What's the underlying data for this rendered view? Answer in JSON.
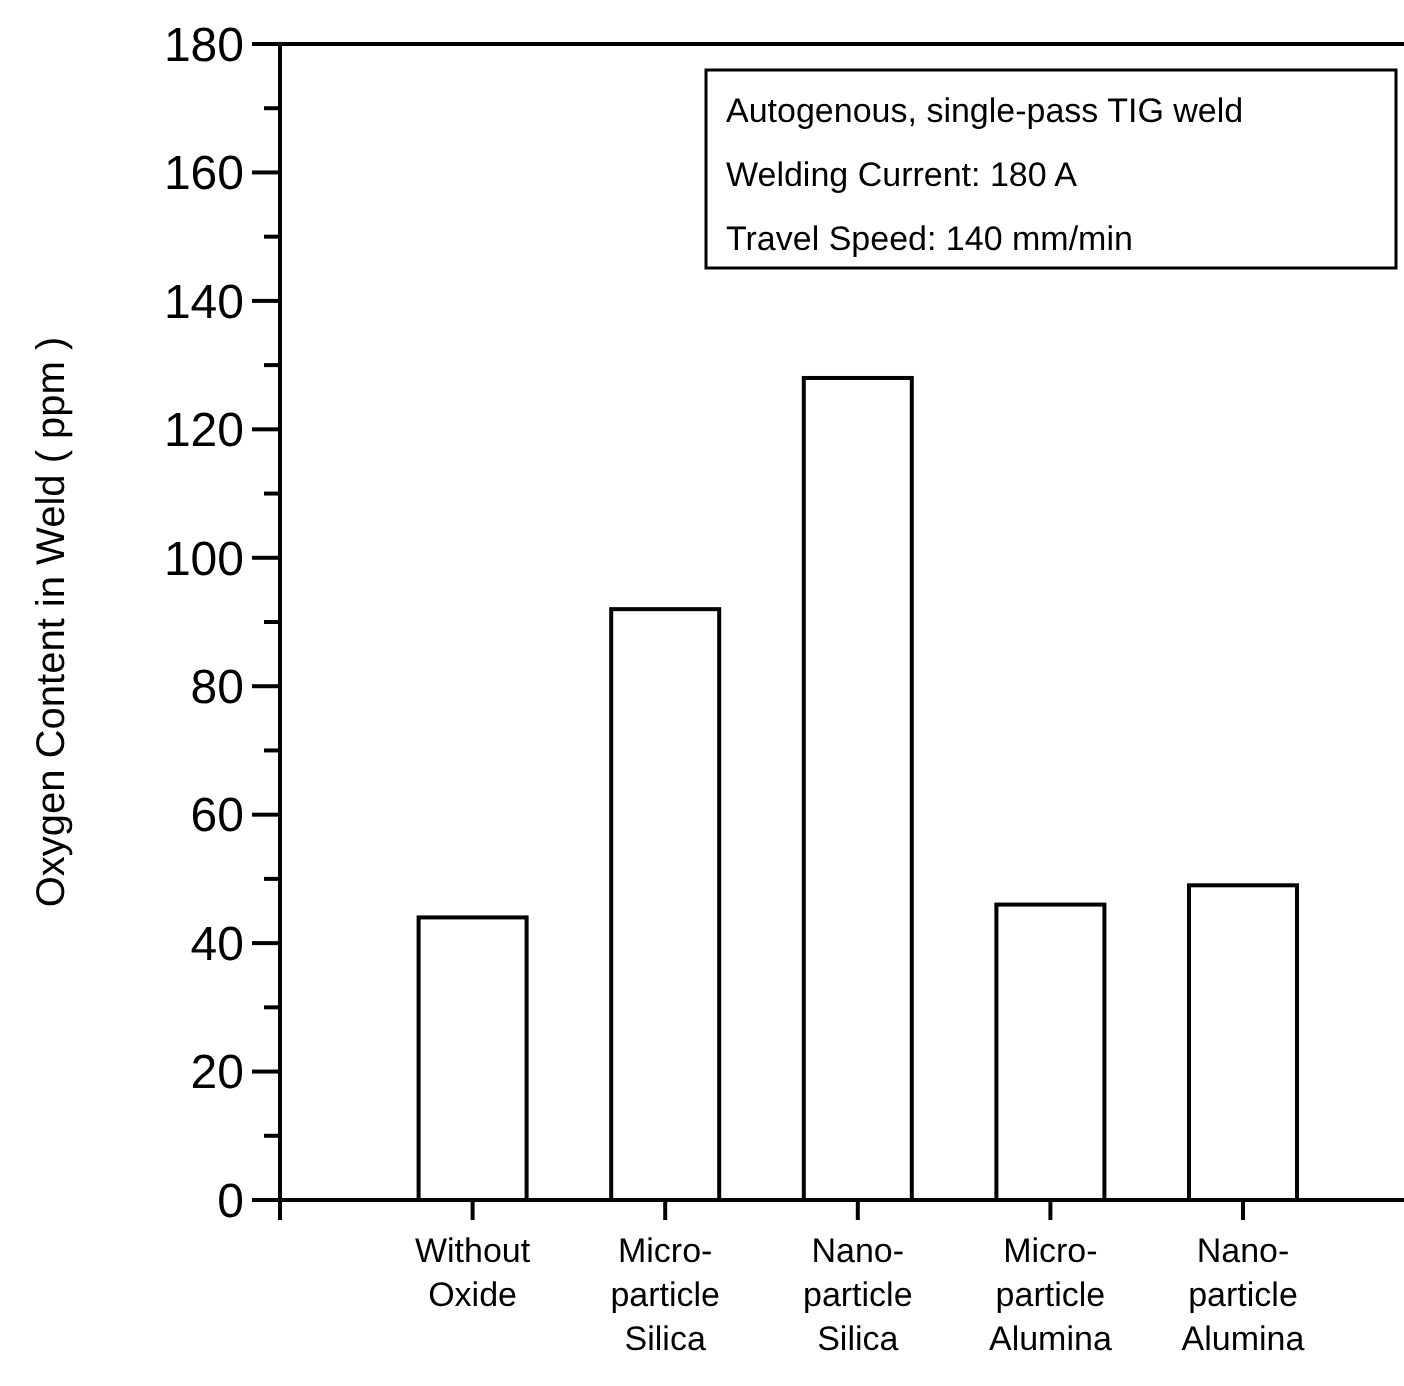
{
  "chart_data": {
    "type": "bar",
    "ylabel": "Oxygen Content in Weld ( ppm )",
    "categories": [
      "Without Oxide",
      "Micro-particle Silica",
      "Nano-particle Silica",
      "Micro-particle Alumina",
      "Nano-particle Alumina"
    ],
    "values": [
      44,
      92,
      128,
      46,
      49
    ],
    "color": "#ffffff",
    "ylim": [
      0,
      180
    ],
    "yticks": [
      0,
      {
        "value": 10,
        "label": null
      },
      20,
      {
        "value": 30,
        "label": null
      },
      40,
      {
        "value": 50,
        "label": null
      },
      60,
      {
        "value": 70,
        "label": null
      },
      80,
      {
        "value": 90,
        "label": null
      },
      100,
      {
        "value": 110,
        "label": null
      },
      120,
      {
        "value": 130,
        "label": null
      },
      140,
      {
        "value": 150,
        "label": null
      },
      160,
      {
        "value": 170,
        "label": null
      },
      180
    ],
    "annotations": [
      "Autogenous, single-pass TIG weld",
      "Welding Current: 180 A",
      "Travel Speed: 140 mm/min"
    ],
    "grid": false
  }
}
